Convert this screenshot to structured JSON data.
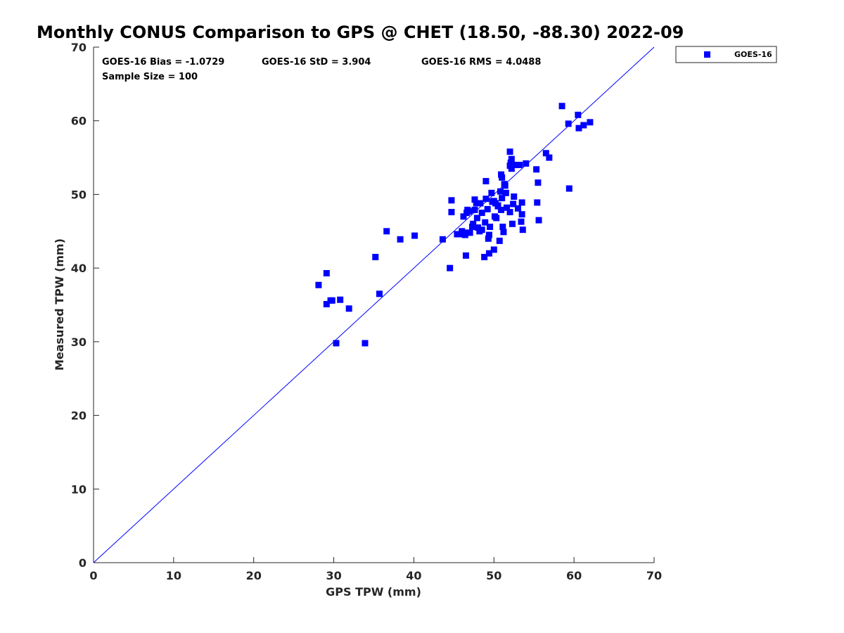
{
  "chart_data": {
    "type": "scatter",
    "title": "Monthly CONUS Comparison to GPS @ CHET (18.50, -88.30) 2022-09",
    "xlabel": "GPS TPW (mm)",
    "ylabel": "Measured TPW (mm)",
    "xlim": [
      0,
      70
    ],
    "ylim": [
      0,
      70
    ],
    "xticks": [
      "0",
      "10",
      "20",
      "30",
      "40",
      "50",
      "60",
      "70"
    ],
    "yticks": [
      "0",
      "10",
      "20",
      "30",
      "40",
      "50",
      "60",
      "70"
    ],
    "grid": false,
    "legend_position": "outside-top-right",
    "stats": {
      "bias": "GOES-16 Bias = -1.0729",
      "std": "GOES-16 StD = 3.904",
      "rms": "GOES-16 RMS = 4.0488",
      "sample_size": "Sample Size = 100"
    },
    "reference_line": {
      "x": [
        0,
        70
      ],
      "y": [
        0,
        70
      ],
      "color": "#0000ff"
    },
    "series": [
      {
        "name": "GOES-16",
        "color": "#0000ff",
        "marker": "square",
        "x": [
          28.1,
          29.1,
          29.1,
          29.6,
          29.8,
          30.8,
          31.9,
          30.3,
          33.9,
          35.2,
          35.7,
          36.6,
          38.3,
          40.1,
          43.6,
          44.5,
          44.7,
          45.4,
          45.9,
          46.0,
          46.2,
          46.4,
          46.5,
          46.6,
          46.7,
          46.9,
          47.3,
          47.4,
          47.6,
          47.8,
          47.9,
          48.0,
          48.2,
          48.3,
          48.5,
          48.8,
          48.9,
          49.0,
          49.2,
          49.3,
          49.4,
          49.4,
          49.7,
          49.8,
          50.0,
          50.1,
          50.2,
          50.3,
          50.5,
          50.7,
          50.8,
          50.9,
          51.0,
          51.1,
          51.2,
          51.3,
          51.4,
          51.5,
          51.6,
          52.0,
          52.0,
          52.2,
          52.2,
          52.3,
          52.4,
          52.5,
          52.6,
          53.0,
          53.2,
          53.4,
          53.5,
          53.6,
          54.0,
          55.3,
          55.4,
          55.5,
          55.6,
          56.5,
          56.9,
          58.5,
          59.3,
          59.4,
          60.5,
          60.6,
          61.2,
          62.0,
          46.5,
          47.6,
          49.0,
          49.5,
          50.0,
          50.5,
          51.0,
          52.0,
          53.5,
          44.7,
          47.0,
          48.5,
          50.9,
          52.1
        ],
        "y": [
          37.7,
          39.3,
          35.1,
          35.6,
          35.6,
          35.7,
          34.5,
          29.8,
          29.8,
          41.5,
          36.5,
          45.0,
          43.9,
          44.4,
          43.9,
          40.0,
          49.2,
          44.6,
          44.6,
          45.0,
          47.0,
          44.5,
          41.7,
          47.5,
          47.9,
          47.7,
          45.6,
          46.0,
          49.3,
          48.8,
          46.8,
          45.5,
          45.0,
          48.8,
          47.5,
          41.5,
          46.2,
          51.8,
          48.0,
          44.0,
          44.5,
          42.0,
          50.2,
          49.0,
          42.5,
          47.0,
          48.8,
          46.8,
          48.5,
          43.7,
          50.4,
          52.7,
          52.3,
          45.6,
          44.9,
          51.4,
          51.2,
          50.2,
          48.2,
          55.8,
          47.6,
          54.8,
          53.5,
          46.0,
          48.7,
          49.7,
          54.0,
          48.1,
          54.0,
          46.3,
          47.3,
          45.2,
          54.2,
          53.4,
          48.9,
          51.6,
          46.5,
          55.6,
          55.0,
          62.0,
          59.6,
          50.8,
          60.8,
          59.0,
          59.4,
          59.8,
          44.8,
          47.9,
          49.4,
          45.6,
          49.1,
          48.4,
          49.5,
          53.9,
          48.9,
          47.6,
          44.8,
          45.2,
          47.9,
          54.3
        ]
      }
    ]
  }
}
